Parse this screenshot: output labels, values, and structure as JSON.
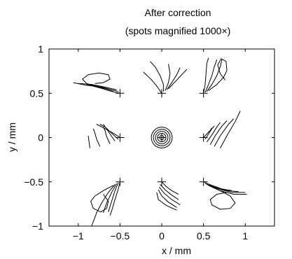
{
  "chart_data": {
    "type": "scatter",
    "title": "After correction",
    "subtitle": "(spots magnified 1000×)",
    "xlabel": "x / mm",
    "ylabel": "y / mm",
    "xlim": [
      -1.35,
      1.35
    ],
    "ylim": [
      -1,
      1
    ],
    "xticks": [
      -1,
      -0.5,
      0,
      0.5,
      1
    ],
    "xtick_labels": [
      "−1",
      "−0.5",
      "0",
      "0.5",
      "1"
    ],
    "yticks": [
      -1,
      -0.5,
      0,
      0.5,
      1
    ],
    "ytick_labels": [
      "−1",
      "−0.5",
      "0",
      "0.5",
      "1"
    ],
    "grid": false,
    "field_points": [
      {
        "x": -0.5,
        "y": 0.5
      },
      {
        "x": 0,
        "y": 0.5
      },
      {
        "x": 0.5,
        "y": 0.5
      },
      {
        "x": -0.5,
        "y": 0
      },
      {
        "x": 0,
        "y": 0
      },
      {
        "x": 0.5,
        "y": 0
      },
      {
        "x": -0.5,
        "y": -0.5
      },
      {
        "x": 0,
        "y": -0.5
      },
      {
        "x": 0.5,
        "y": -0.5
      }
    ],
    "spots": [
      {
        "label": "top-left",
        "traces": [
          [
            [
              -0.5,
              0.5
            ],
            [
              -0.6,
              0.52
            ],
            [
              -0.7,
              0.55
            ],
            [
              -0.82,
              0.58
            ]
          ],
          [
            [
              -0.52,
              0.52
            ],
            [
              -0.65,
              0.55
            ],
            [
              -0.78,
              0.58
            ],
            [
              -0.9,
              0.6
            ]
          ],
          [
            [
              -0.54,
              0.54
            ],
            [
              -0.68,
              0.57
            ],
            [
              -0.84,
              0.6
            ],
            [
              -1.0,
              0.61
            ]
          ],
          [
            [
              -0.56,
              0.53
            ],
            [
              -0.72,
              0.57
            ],
            [
              -0.9,
              0.59
            ],
            [
              -1.06,
              0.62
            ]
          ],
          [
            [
              -0.58,
              0.52
            ],
            [
              -0.76,
              0.57
            ],
            [
              -0.9,
              0.61
            ],
            [
              -0.95,
              0.66
            ],
            [
              -0.88,
              0.71
            ],
            [
              -0.75,
              0.73
            ],
            [
              -0.64,
              0.71
            ],
            [
              -0.62,
              0.66
            ],
            [
              -0.7,
              0.62
            ],
            [
              -0.8,
              0.61
            ]
          ]
        ]
      },
      {
        "label": "top-center",
        "traces": [
          [
            [
              0,
              0.5
            ],
            [
              -0.05,
              0.57
            ],
            [
              -0.12,
              0.65
            ],
            [
              -0.22,
              0.74
            ]
          ],
          [
            [
              0.02,
              0.52
            ],
            [
              0.02,
              0.6
            ],
            [
              -0.02,
              0.7
            ],
            [
              -0.08,
              0.8
            ],
            [
              -0.14,
              0.86
            ]
          ],
          [
            [
              0.04,
              0.53
            ],
            [
              0.08,
              0.62
            ],
            [
              0.1,
              0.72
            ],
            [
              0.08,
              0.83
            ]
          ],
          [
            [
              0.06,
              0.54
            ],
            [
              0.12,
              0.62
            ],
            [
              0.18,
              0.71
            ],
            [
              0.22,
              0.79
            ]
          ],
          [
            [
              0.08,
              0.55
            ],
            [
              0.16,
              0.63
            ],
            [
              0.24,
              0.71
            ],
            [
              0.3,
              0.77
            ]
          ]
        ]
      },
      {
        "label": "top-right",
        "traces": [
          [
            [
              0.5,
              0.5
            ],
            [
              0.52,
              0.6
            ],
            [
              0.53,
              0.72
            ],
            [
              0.54,
              0.84
            ],
            [
              0.56,
              0.9
            ]
          ],
          [
            [
              0.52,
              0.51
            ],
            [
              0.56,
              0.6
            ],
            [
              0.6,
              0.7
            ],
            [
              0.63,
              0.8
            ],
            [
              0.66,
              0.88
            ]
          ],
          [
            [
              0.54,
              0.52
            ],
            [
              0.6,
              0.6
            ],
            [
              0.66,
              0.7
            ],
            [
              0.7,
              0.8
            ],
            [
              0.72,
              0.88
            ]
          ],
          [
            [
              0.56,
              0.53
            ],
            [
              0.66,
              0.6
            ],
            [
              0.74,
              0.68
            ],
            [
              0.78,
              0.76
            ],
            [
              0.77,
              0.86
            ],
            [
              0.71,
              0.89
            ],
            [
              0.67,
              0.82
            ],
            [
              0.7,
              0.72
            ],
            [
              0.76,
              0.65
            ]
          ]
        ]
      },
      {
        "label": "middle-left",
        "traces": [
          [
            [
              -0.5,
              0
            ],
            [
              -0.58,
              0.05
            ],
            [
              -0.68,
              0.1
            ],
            [
              -0.78,
              0.15
            ]
          ],
          [
            [
              -0.52,
              -0.02
            ],
            [
              -0.6,
              0.05
            ],
            [
              -0.68,
              0.12
            ],
            [
              -0.74,
              0.15
            ]
          ],
          [
            [
              -0.56,
              -0.04
            ],
            [
              -0.62,
              0.04
            ],
            [
              -0.66,
              0.1
            ],
            [
              -0.7,
              0.15
            ]
          ],
          [
            [
              -0.62,
              -0.07
            ],
            [
              -0.66,
              0.01
            ],
            [
              -0.68,
              0.08
            ],
            [
              -0.7,
              0.12
            ]
          ],
          [
            [
              -0.74,
              -0.1
            ],
            [
              -0.78,
              -0.02
            ],
            [
              -0.8,
              0.05
            ],
            [
              -0.82,
              0.1
            ]
          ],
          [
            [
              -0.86,
              -0.12
            ],
            [
              -0.87,
              -0.05
            ],
            [
              -0.88,
              0.02
            ]
          ]
        ]
      },
      {
        "label": "middle-right",
        "traces": [
          [
            [
              0.5,
              0
            ],
            [
              0.54,
              0.04
            ],
            [
              0.58,
              0.08
            ],
            [
              0.6,
              0.11
            ]
          ],
          [
            [
              0.52,
              -0.02
            ],
            [
              0.56,
              0.04
            ],
            [
              0.6,
              0.1
            ],
            [
              0.63,
              0.13
            ]
          ],
          [
            [
              0.54,
              -0.05
            ],
            [
              0.6,
              0.03
            ],
            [
              0.66,
              0.12
            ],
            [
              0.7,
              0.17
            ]
          ],
          [
            [
              0.58,
              -0.08
            ],
            [
              0.64,
              0.02
            ],
            [
              0.72,
              0.13
            ],
            [
              0.78,
              0.19
            ]
          ],
          [
            [
              0.63,
              -0.1
            ],
            [
              0.7,
              0.02
            ],
            [
              0.8,
              0.15
            ],
            [
              0.86,
              0.21
            ]
          ],
          [
            [
              0.7,
              -0.12
            ],
            [
              0.78,
              0.02
            ],
            [
              0.88,
              0.18
            ],
            [
              0.94,
              0.3
            ]
          ]
        ]
      },
      {
        "label": "bottom-left",
        "traces": [
          [
            [
              -0.5,
              -0.5
            ],
            [
              -0.52,
              -0.58
            ],
            [
              -0.56,
              -0.7
            ],
            [
              -0.6,
              -0.83
            ],
            [
              -0.62,
              -0.88
            ]
          ],
          [
            [
              -0.52,
              -0.51
            ],
            [
              -0.56,
              -0.6
            ],
            [
              -0.6,
              -0.72
            ],
            [
              -0.64,
              -0.84
            ]
          ],
          [
            [
              -0.54,
              -0.52
            ],
            [
              -0.6,
              -0.62
            ],
            [
              -0.66,
              -0.74
            ],
            [
              -0.7,
              -0.85
            ]
          ],
          [
            [
              -0.56,
              -0.53
            ],
            [
              -0.64,
              -0.62
            ],
            [
              -0.72,
              -0.74
            ],
            [
              -0.78,
              -0.85
            ],
            [
              -0.82,
              -0.95
            ],
            [
              -0.84,
              -1.0
            ]
          ],
          [
            [
              -0.58,
              -0.54
            ],
            [
              -0.7,
              -0.6
            ],
            [
              -0.8,
              -0.66
            ],
            [
              -0.85,
              -0.72
            ],
            [
              -0.82,
              -0.8
            ],
            [
              -0.73,
              -0.84
            ],
            [
              -0.66,
              -0.8
            ],
            [
              -0.64,
              -0.72
            ],
            [
              -0.7,
              -0.64
            ]
          ]
        ]
      },
      {
        "label": "bottom-center",
        "traces": [
          [
            [
              0,
              -0.5
            ],
            [
              0.05,
              -0.55
            ],
            [
              0.12,
              -0.6
            ],
            [
              0.2,
              -0.64
            ]
          ],
          [
            [
              -0.02,
              -0.53
            ],
            [
              0.04,
              -0.59
            ],
            [
              0.12,
              -0.65
            ],
            [
              0.2,
              -0.7
            ]
          ],
          [
            [
              -0.03,
              -0.56
            ],
            [
              0.03,
              -0.63
            ],
            [
              0.12,
              -0.7
            ],
            [
              0.22,
              -0.76
            ]
          ],
          [
            [
              -0.04,
              -0.59
            ],
            [
              0.0,
              -0.66
            ],
            [
              0.08,
              -0.73
            ],
            [
              0.18,
              -0.79
            ]
          ],
          [
            [
              -0.06,
              -0.62
            ],
            [
              -0.04,
              -0.7
            ],
            [
              0.06,
              -0.77
            ],
            [
              0.18,
              -0.82
            ]
          ]
        ]
      },
      {
        "label": "bottom-right",
        "traces": [
          [
            [
              0.5,
              -0.5
            ],
            [
              0.6,
              -0.54
            ],
            [
              0.72,
              -0.58
            ],
            [
              0.84,
              -0.6
            ]
          ],
          [
            [
              0.52,
              -0.52
            ],
            [
              0.64,
              -0.56
            ],
            [
              0.78,
              -0.6
            ],
            [
              0.92,
              -0.61
            ]
          ],
          [
            [
              0.54,
              -0.53
            ],
            [
              0.68,
              -0.58
            ],
            [
              0.84,
              -0.62
            ],
            [
              1.0,
              -0.62
            ]
          ],
          [
            [
              0.56,
              -0.54
            ],
            [
              0.7,
              -0.6
            ],
            [
              0.86,
              -0.64
            ],
            [
              1.02,
              -0.64
            ]
          ],
          [
            [
              0.58,
              -0.55
            ],
            [
              0.72,
              -0.61
            ],
            [
              0.82,
              -0.66
            ],
            [
              0.88,
              -0.74
            ],
            [
              0.82,
              -0.8
            ],
            [
              0.7,
              -0.81
            ],
            [
              0.6,
              -0.76
            ],
            [
              0.58,
              -0.7
            ],
            [
              0.66,
              -0.64
            ],
            [
              0.78,
              -0.62
            ]
          ]
        ]
      }
    ],
    "center_rings": [
      0.025,
      0.05,
      0.075,
      0.1,
      0.125
    ]
  }
}
